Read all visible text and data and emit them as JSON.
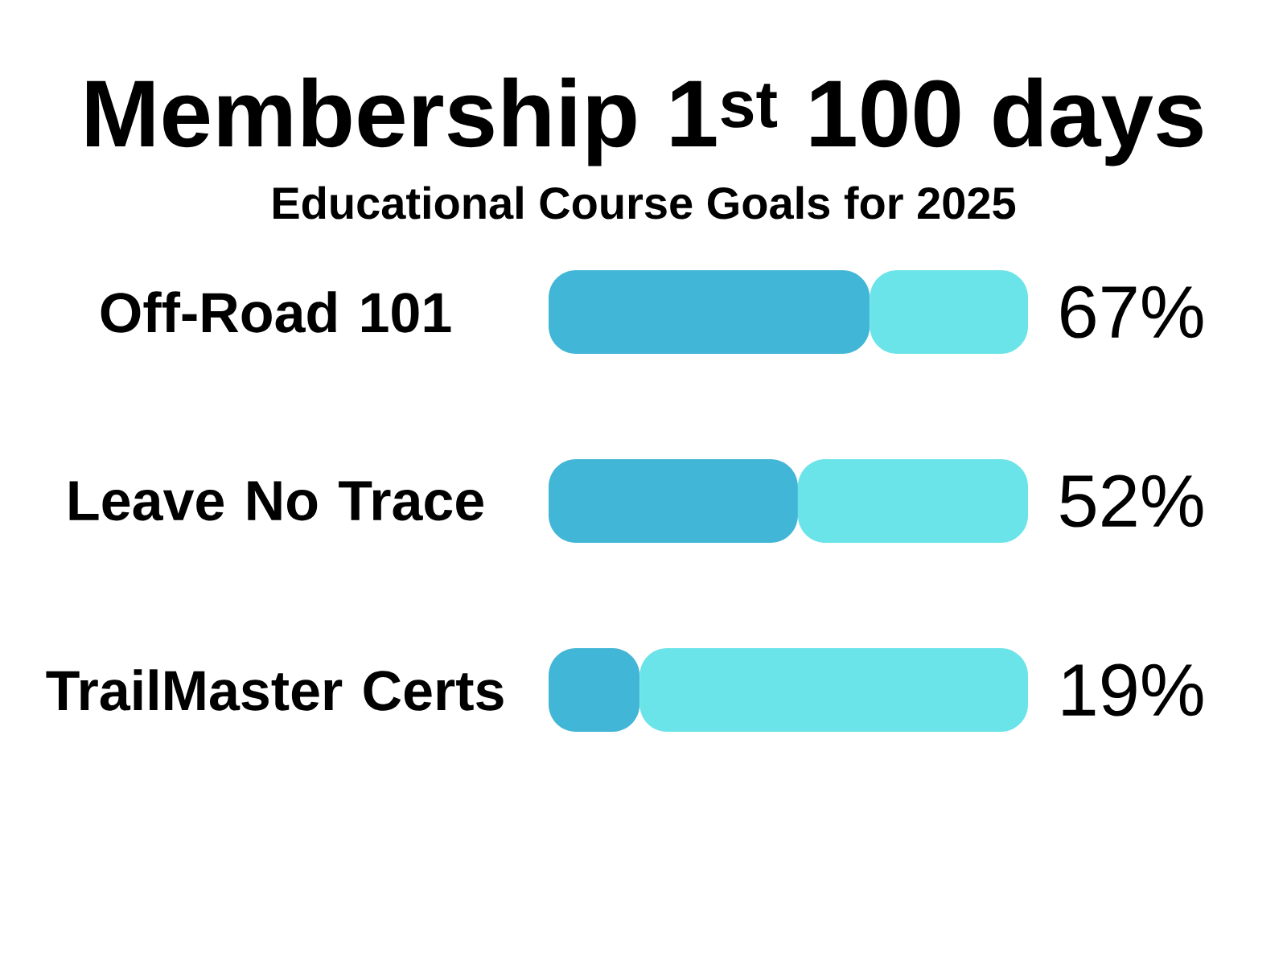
{
  "chart_data": {
    "type": "bar",
    "orientation": "horizontal",
    "stacked": true,
    "title": "Membership 1$^{st}$ 100 days",
    "subtitle": "Educational Course Goals for 2025",
    "categories": [
      "Off-Road 101",
      "Leave No Trace",
      "TrailMaster Certs"
    ],
    "series": [
      {
        "color": "#42b6d6",
        "values": [
          67,
          52,
          19
        ],
        "value_labels": [
          "67%",
          "52%",
          "19%"
        ]
      },
      {
        "color": "#6ae4e8",
        "values": [
          33,
          48,
          81
        ]
      }
    ],
    "xlim": [
      0,
      100
    ],
    "tick_labels": "y"
  }
}
